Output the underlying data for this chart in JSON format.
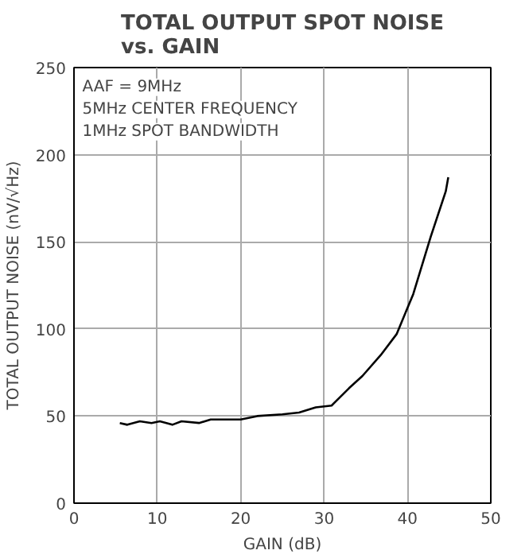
{
  "chart_data": {
    "type": "line",
    "title": "TOTAL OUTPUT SPOT NOISE\nvs. GAIN",
    "xlabel": "GAIN (dB)",
    "ylabel": "TOTAL OUTPUT NOISE (nV/√Hz)",
    "annotations": [
      "AAF = 9MHz",
      "5MHz CENTER FREQUENCY",
      "1MHz SPOT BANDWIDTH"
    ],
    "x": [
      5.5,
      6.4,
      7.9,
      9.3,
      10.3,
      11.8,
      12.9,
      15,
      16.4,
      20,
      22,
      25,
      27,
      29,
      30.9,
      33,
      34.6,
      36.8,
      38.7,
      40.7,
      42.8,
      44.6,
      44.9
    ],
    "series": [
      {
        "color": "#000000",
        "values": [
          46,
          45,
          47,
          46,
          47,
          45,
          47,
          46,
          48,
          48,
          50,
          51,
          52,
          55,
          56,
          66,
          73,
          85,
          97,
          120,
          153,
          179,
          187
        ]
      }
    ],
    "xlim": [
      0,
      50
    ],
    "xticks": [
      0,
      10,
      20,
      30,
      40,
      50
    ],
    "ylim": [
      0,
      250
    ],
    "yticks": [
      0,
      50,
      100,
      150,
      200,
      250
    ],
    "grid": true,
    "marker": "none",
    "line_style": "solid"
  }
}
